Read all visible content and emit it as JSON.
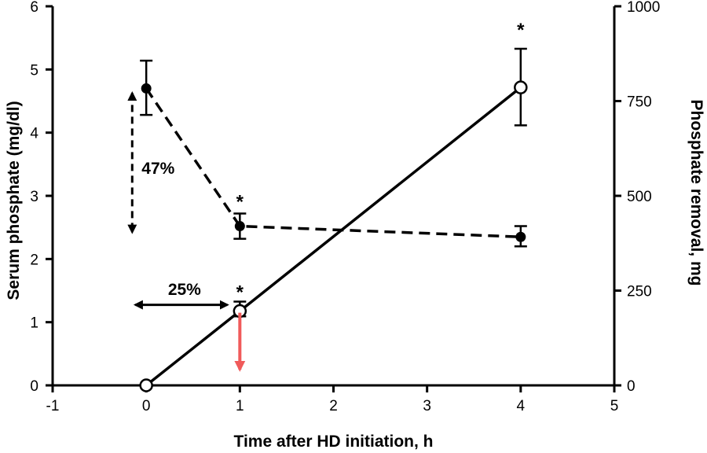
{
  "chart_data": {
    "type": "line",
    "x_axis": {
      "label": "Time after HD initiation, h",
      "range": [
        -1,
        5
      ],
      "ticks": [
        -1,
        0,
        1,
        2,
        3,
        4,
        5
      ],
      "tick_labels": [
        "-1",
        "0",
        "1",
        "2",
        "3",
        "4",
        "5"
      ]
    },
    "y_left": {
      "label": "Serum phosphate (mg/dl)",
      "range": [
        0,
        6
      ],
      "ticks": [
        0,
        1,
        2,
        3,
        4,
        5,
        6
      ],
      "tick_labels": [
        "0",
        "1",
        "2",
        "3",
        "4",
        "5",
        "6"
      ]
    },
    "y_right": {
      "label": "Phosphate removal, mg",
      "range": [
        0,
        1000
      ],
      "ticks": [
        0,
        250,
        500,
        750,
        1000
      ],
      "tick_labels": [
        "0",
        "250",
        "500",
        "750",
        "1000"
      ]
    },
    "series": [
      {
        "name": "Serum phosphate",
        "axis": "left",
        "style": "dashed",
        "marker": "filled-circle",
        "x": [
          0,
          1,
          4
        ],
        "y": [
          4.7,
          2.52,
          2.35
        ],
        "err_low": [
          4.28,
          2.32,
          2.2
        ],
        "err_high": [
          5.14,
          2.72,
          2.52
        ]
      },
      {
        "name": "Phosphate removal",
        "axis": "right",
        "style": "solid",
        "marker": "open-circle",
        "x": [
          0,
          1,
          4
        ],
        "y": [
          0,
          196,
          786
        ],
        "err_low": [
          0,
          182,
          686
        ],
        "err_high": [
          0,
          221,
          888
        ]
      }
    ],
    "significance_marks": [
      {
        "text": "*",
        "x": 1,
        "y_value": 2.98,
        "axis": "left"
      },
      {
        "text": "*",
        "x": 1,
        "y_value": 1.55,
        "axis": "left"
      },
      {
        "text": "*",
        "x": 4,
        "y_value": 5.7,
        "axis": "left"
      }
    ],
    "annotations": [
      {
        "text": "47%",
        "kind": "vertical-double-arrow",
        "x": -0.15,
        "y_from": 4.7,
        "y_to": 2.35
      },
      {
        "text": "25%",
        "kind": "horizontal-double-arrow",
        "y": 1.2,
        "x_from": -0.15,
        "x_to": 0.9
      },
      {
        "text": "",
        "kind": "down-arrow",
        "color": "#f05a5a",
        "x": 1,
        "y_from": 1.15,
        "y_to": 0.1
      }
    ]
  }
}
